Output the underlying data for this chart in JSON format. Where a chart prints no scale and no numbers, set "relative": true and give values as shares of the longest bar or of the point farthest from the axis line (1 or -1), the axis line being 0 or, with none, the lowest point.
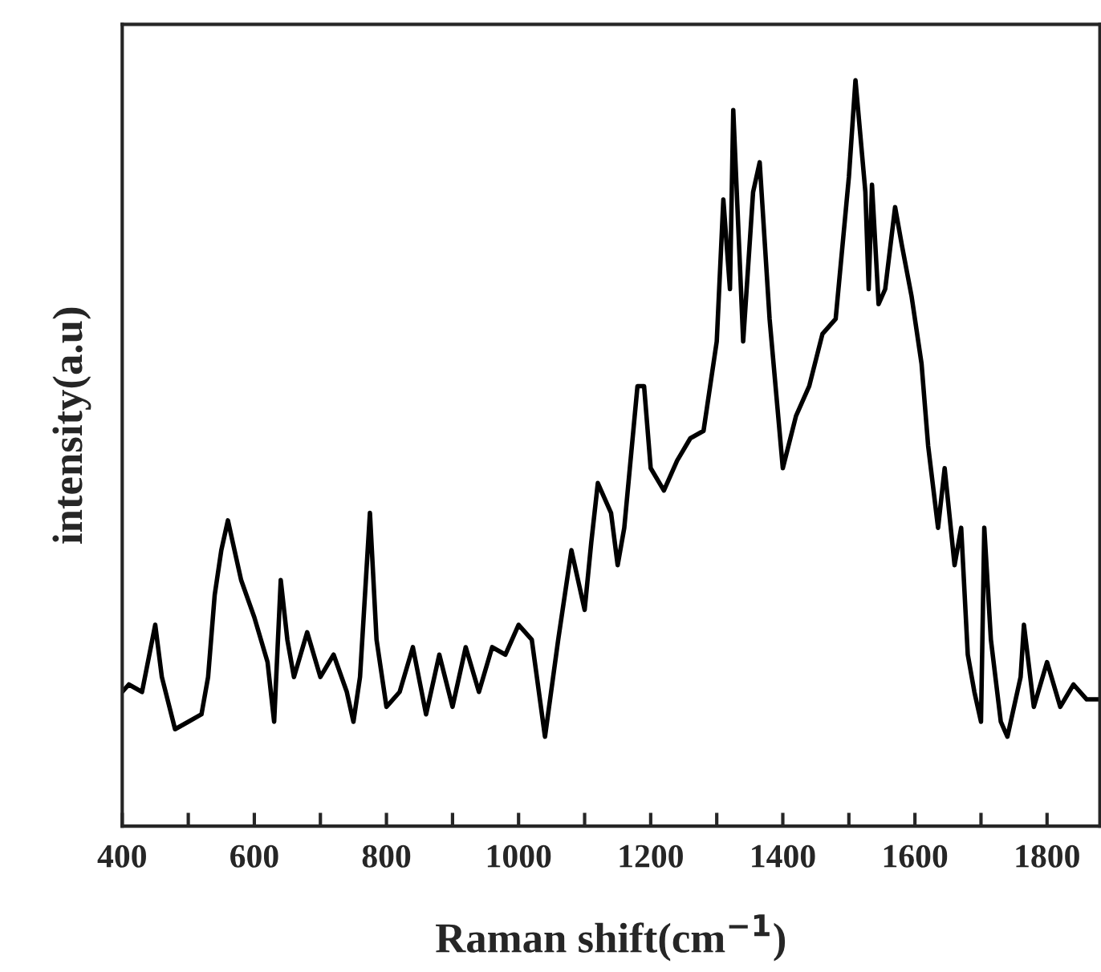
{
  "chart_data": {
    "type": "line",
    "relative": true,
    "xlabel": "Raman shift(cm$^{−1}$)",
    "ylabel": "intensity(a.u)",
    "xlim": [
      400,
      1880
    ],
    "xticks": [
      400,
      {
        "value": 500,
        "label": null
      },
      600,
      {
        "value": 700,
        "label": null
      },
      800,
      {
        "value": 900,
        "label": null
      },
      1000,
      {
        "value": 1100,
        "label": null
      },
      1200,
      {
        "value": 1300,
        "label": null
      },
      1400,
      {
        "value": 1500,
        "label": null
      },
      1600,
      {
        "value": 1700,
        "label": null
      },
      1800
    ],
    "tick_labels": "x",
    "grid": false,
    "legend": false,
    "marker": "none",
    "line_style": "solid",
    "series": [
      {
        "color": "#000000",
        "x": [
          400,
          410,
          430,
          450,
          460,
          480,
          500,
          520,
          530,
          540,
          550,
          560,
          570,
          580,
          600,
          620,
          630,
          640,
          650,
          660,
          680,
          700,
          720,
          740,
          750,
          760,
          775,
          785,
          800,
          820,
          840,
          860,
          880,
          900,
          920,
          940,
          960,
          980,
          1000,
          1020,
          1040,
          1060,
          1080,
          1100,
          1110,
          1120,
          1140,
          1150,
          1160,
          1180,
          1190,
          1200,
          1220,
          1240,
          1260,
          1280,
          1300,
          1310,
          1320,
          1325,
          1340,
          1355,
          1365,
          1380,
          1400,
          1420,
          1440,
          1460,
          1480,
          1500,
          1510,
          1525,
          1530,
          1535,
          1545,
          1555,
          1570,
          1580,
          1595,
          1610,
          1620,
          1635,
          1645,
          1660,
          1670,
          1680,
          1690,
          1700,
          1705,
          1715,
          1730,
          1740,
          1760,
          1765,
          1780,
          1800,
          1820,
          1840,
          1860,
          1880
        ],
        "values": [
          0.18,
          0.19,
          0.18,
          0.27,
          0.2,
          0.13,
          0.14,
          0.15,
          0.2,
          0.31,
          0.37,
          0.41,
          0.37,
          0.33,
          0.28,
          0.22,
          0.14,
          0.33,
          0.25,
          0.2,
          0.26,
          0.2,
          0.23,
          0.18,
          0.14,
          0.2,
          0.42,
          0.25,
          0.16,
          0.18,
          0.24,
          0.15,
          0.23,
          0.16,
          0.24,
          0.18,
          0.24,
          0.23,
          0.27,
          0.25,
          0.12,
          0.25,
          0.37,
          0.29,
          0.38,
          0.46,
          0.42,
          0.35,
          0.4,
          0.59,
          0.59,
          0.48,
          0.45,
          0.49,
          0.52,
          0.53,
          0.65,
          0.84,
          0.72,
          0.96,
          0.65,
          0.85,
          0.89,
          0.68,
          0.48,
          0.55,
          0.59,
          0.66,
          0.68,
          0.87,
          1,
          0.85,
          0.72,
          0.86,
          0.7,
          0.72,
          0.83,
          0.78,
          0.71,
          0.62,
          0.51,
          0.4,
          0.48,
          0.35,
          0.4,
          0.23,
          0.18,
          0.14,
          0.4,
          0.25,
          0.14,
          0.12,
          0.2,
          0.27,
          0.16,
          0.22,
          0.16,
          0.19,
          0.17,
          0.17
        ]
      }
    ]
  }
}
